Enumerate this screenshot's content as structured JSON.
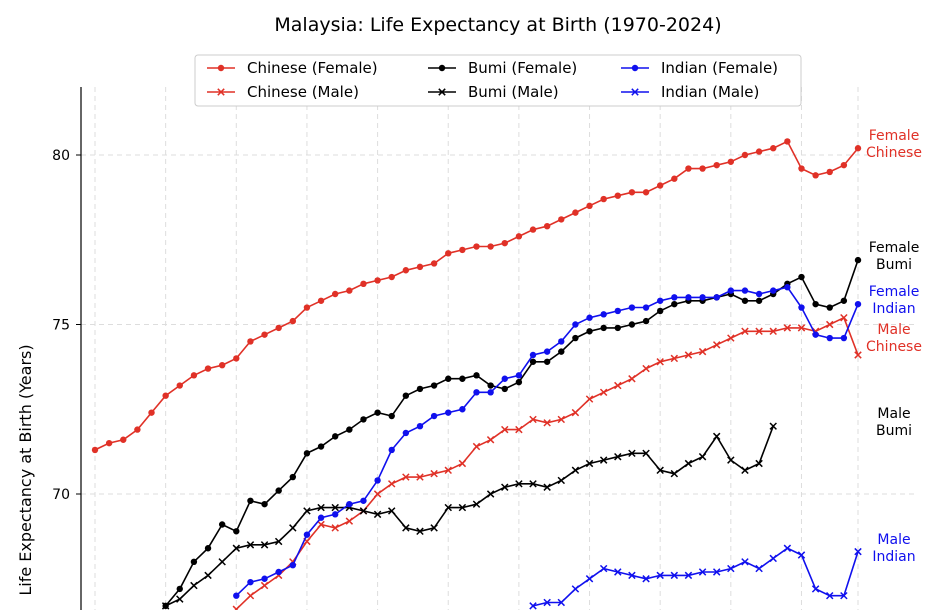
{
  "chart_data": {
    "type": "line",
    "title": "Malaysia: Life Expectancy at Birth (1970-2024)",
    "xlabel": "",
    "ylabel": "Life Expectancy at Birth (Years)",
    "x": [
      1970,
      1971,
      1972,
      1973,
      1974,
      1975,
      1976,
      1977,
      1978,
      1979,
      1980,
      1981,
      1982,
      1983,
      1984,
      1985,
      1986,
      1987,
      1988,
      1989,
      1990,
      1991,
      1992,
      1993,
      1994,
      1995,
      1996,
      1997,
      1998,
      1999,
      2000,
      2001,
      2002,
      2003,
      2004,
      2005,
      2006,
      2007,
      2008,
      2009,
      2010,
      2011,
      2012,
      2013,
      2014,
      2015,
      2016,
      2017,
      2018,
      2019,
      2020,
      2021,
      2022,
      2023,
      2024
    ],
    "ylim": [
      66.6,
      82.0
    ],
    "xlim": [
      1970,
      2024
    ],
    "yticks": [
      70,
      75,
      80
    ],
    "xgrid": [
      1970,
      1975,
      1980,
      1985,
      1990,
      1995,
      2000,
      2005,
      2010,
      2015,
      2020,
      2024
    ],
    "legend_position": "top-center",
    "series": [
      {
        "key": "chinese_female",
        "name": "Chinese (Female)",
        "color": "#e03127",
        "marker": "circle",
        "end_label": [
          "Female",
          "Chinese"
        ],
        "values": [
          71.3,
          71.5,
          71.6,
          71.9,
          72.4,
          72.9,
          73.2,
          73.5,
          73.7,
          73.8,
          74.0,
          74.5,
          74.7,
          74.9,
          75.1,
          75.5,
          75.7,
          75.9,
          76.0,
          76.2,
          76.3,
          76.4,
          76.6,
          76.7,
          76.8,
          77.1,
          77.2,
          77.3,
          77.3,
          77.4,
          77.6,
          77.8,
          77.9,
          78.1,
          78.3,
          78.5,
          78.7,
          78.8,
          78.9,
          78.9,
          79.1,
          79.3,
          79.6,
          79.6,
          79.7,
          79.8,
          80.0,
          80.1,
          80.2,
          80.4,
          79.6,
          79.4,
          79.5,
          79.7,
          80.2
        ]
      },
      {
        "key": "chinese_male",
        "name": "Chinese (Male)",
        "color": "#e03127",
        "marker": "x",
        "end_label": [
          "Male",
          "Chinese"
        ],
        "values": [
          null,
          null,
          null,
          null,
          null,
          null,
          null,
          null,
          null,
          null,
          null,
          null,
          null,
          null,
          null,
          null,
          null,
          null,
          null,
          null,
          null,
          null,
          null,
          null,
          null,
          null,
          null,
          null,
          null,
          null,
          null,
          null,
          null,
          null,
          null,
          null,
          null,
          null,
          null,
          null,
          null,
          null,
          null,
          null,
          null,
          null,
          null,
          null,
          null,
          null,
          null,
          null,
          null,
          null,
          null
        ]
      },
      {
        "key": "bumi_female",
        "name": "Bumi (Female)",
        "color": "#000000",
        "marker": "circle",
        "end_label": [
          "Female",
          "Bumi"
        ],
        "values": [
          null,
          null,
          null,
          null,
          null,
          null,
          null,
          null,
          null,
          null,
          null,
          null,
          null,
          null,
          null,
          null,
          null,
          null,
          null,
          null,
          null,
          null,
          null,
          null,
          null,
          null,
          null,
          null,
          null,
          null,
          null,
          null,
          null,
          null,
          null,
          null,
          null,
          null,
          null,
          null,
          null,
          null,
          null,
          null,
          null,
          null,
          null,
          null,
          null,
          null,
          null,
          null,
          null,
          null,
          null
        ]
      },
      {
        "key": "bumi_male",
        "name": "Bumi (Male)",
        "color": "#000000",
        "marker": "x",
        "end_label": [
          "Male",
          "Bumi"
        ],
        "values": [
          null,
          null,
          null,
          null,
          null,
          null,
          null,
          null,
          null,
          null,
          null,
          null,
          null,
          null,
          null,
          null,
          null,
          null,
          null,
          null,
          null,
          null,
          null,
          null,
          null,
          null,
          null,
          null,
          null,
          null,
          null,
          null,
          null,
          null,
          null,
          null,
          null,
          null,
          null,
          null,
          null,
          null,
          null,
          null,
          null,
          null,
          null,
          null,
          null,
          null,
          null,
          null,
          null,
          null,
          null
        ]
      },
      {
        "key": "indian_female",
        "name": "Indian (Female)",
        "color": "#1010ee",
        "marker": "circle",
        "end_label": [
          "Female",
          "Indian"
        ],
        "values": [
          null,
          null,
          null,
          null,
          null,
          null,
          null,
          null,
          null,
          null,
          null,
          null,
          null,
          null,
          null,
          null,
          null,
          null,
          null,
          null,
          null,
          null,
          null,
          null,
          null,
          null,
          null,
          null,
          null,
          null,
          null,
          null,
          null,
          null,
          null,
          null,
          null,
          null,
          null,
          null,
          null,
          null,
          null,
          null,
          null,
          null,
          null,
          null,
          null,
          null,
          null,
          null,
          null,
          null,
          null
        ]
      },
      {
        "key": "indian_male",
        "name": "Indian (Male)",
        "color": "#1010ee",
        "marker": "x",
        "end_label": [
          "Male",
          "Indian"
        ],
        "values": [
          null,
          null,
          null,
          null,
          null,
          null,
          null,
          null,
          null,
          null,
          null,
          null,
          null,
          null,
          null,
          null,
          null,
          null,
          null,
          null,
          null,
          null,
          null,
          null,
          null,
          null,
          null,
          null,
          null,
          null,
          null,
          null,
          null,
          null,
          null,
          null,
          null,
          null,
          null,
          null,
          null,
          null,
          null,
          null,
          null,
          null,
          null,
          null,
          null,
          null,
          null,
          null,
          null,
          null,
          null
        ]
      }
    ]
  }
}
